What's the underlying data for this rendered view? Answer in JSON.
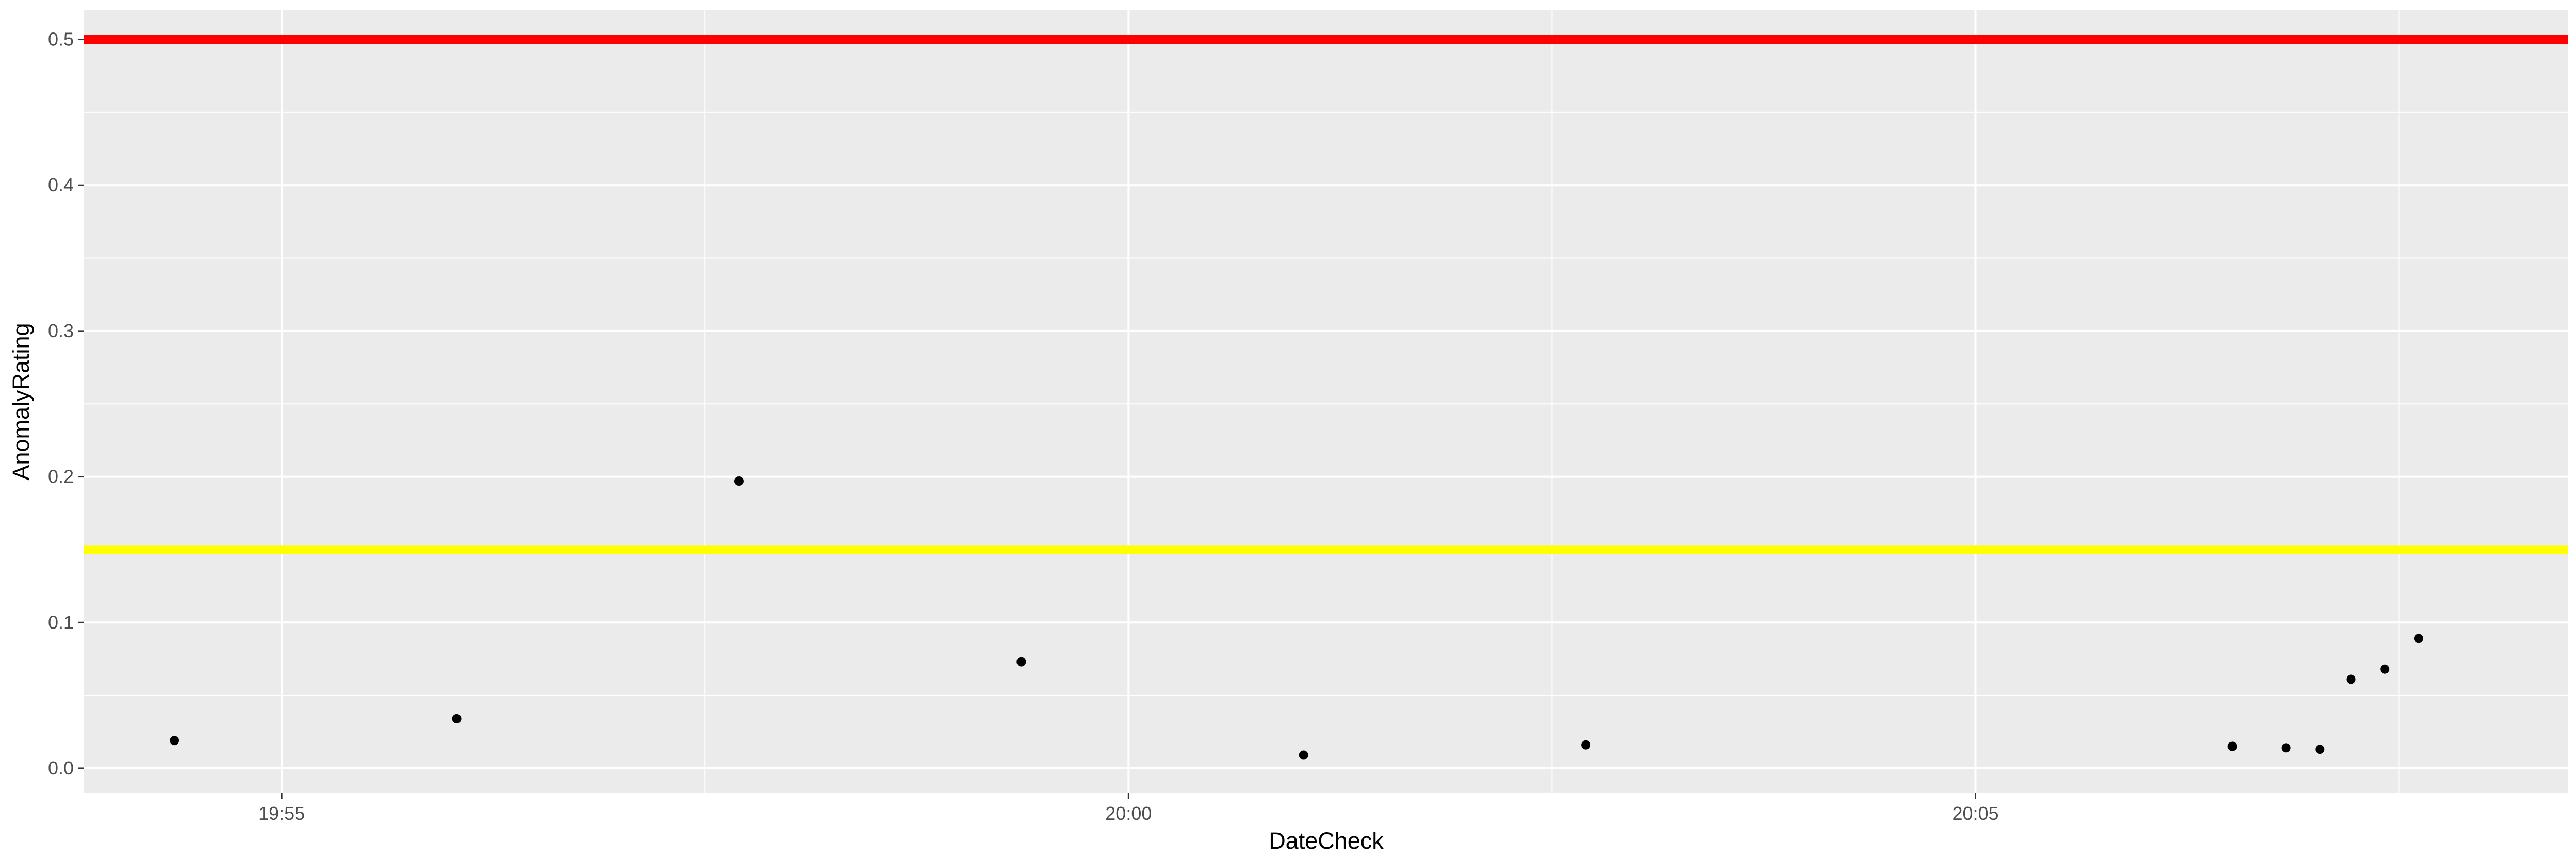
{
  "chart_data": {
    "type": "scatter",
    "title": "",
    "xlabel": "DateCheck",
    "ylabel": "AnomalyRating",
    "x_tick_labels": [
      "19:55",
      "20:00",
      "20:05"
    ],
    "y_tick_labels": [
      "0.0",
      "0.1",
      "0.2",
      "0.3",
      "0.4",
      "0.5"
    ],
    "xlim": [
      "19:53:50",
      "20:08:30"
    ],
    "ylim": [
      -0.017,
      0.52
    ],
    "grid": true,
    "panel_background": "#EBEBEB",
    "grid_color": "#FFFFFF",
    "point_color": "#000000",
    "points": [
      {
        "x": "19:54:22",
        "y": 0.019
      },
      {
        "x": "19:56:02",
        "y": 0.034
      },
      {
        "x": "19:57:42",
        "y": 0.197
      },
      {
        "x": "19:59:22",
        "y": 0.073
      },
      {
        "x": "20:01:02",
        "y": 0.009
      },
      {
        "x": "20:02:42",
        "y": 0.016
      },
      {
        "x": "20:06:31",
        "y": 0.015
      },
      {
        "x": "20:06:50",
        "y": 0.014
      },
      {
        "x": "20:07:02",
        "y": 0.013
      },
      {
        "x": "20:07:13",
        "y": 0.061
      },
      {
        "x": "20:07:25",
        "y": 0.068
      },
      {
        "x": "20:07:37",
        "y": 0.089
      }
    ],
    "threshold_lines": [
      {
        "y": 0.5,
        "color": "#FF0000"
      },
      {
        "y": 0.15,
        "color": "#FFFF00"
      }
    ]
  }
}
